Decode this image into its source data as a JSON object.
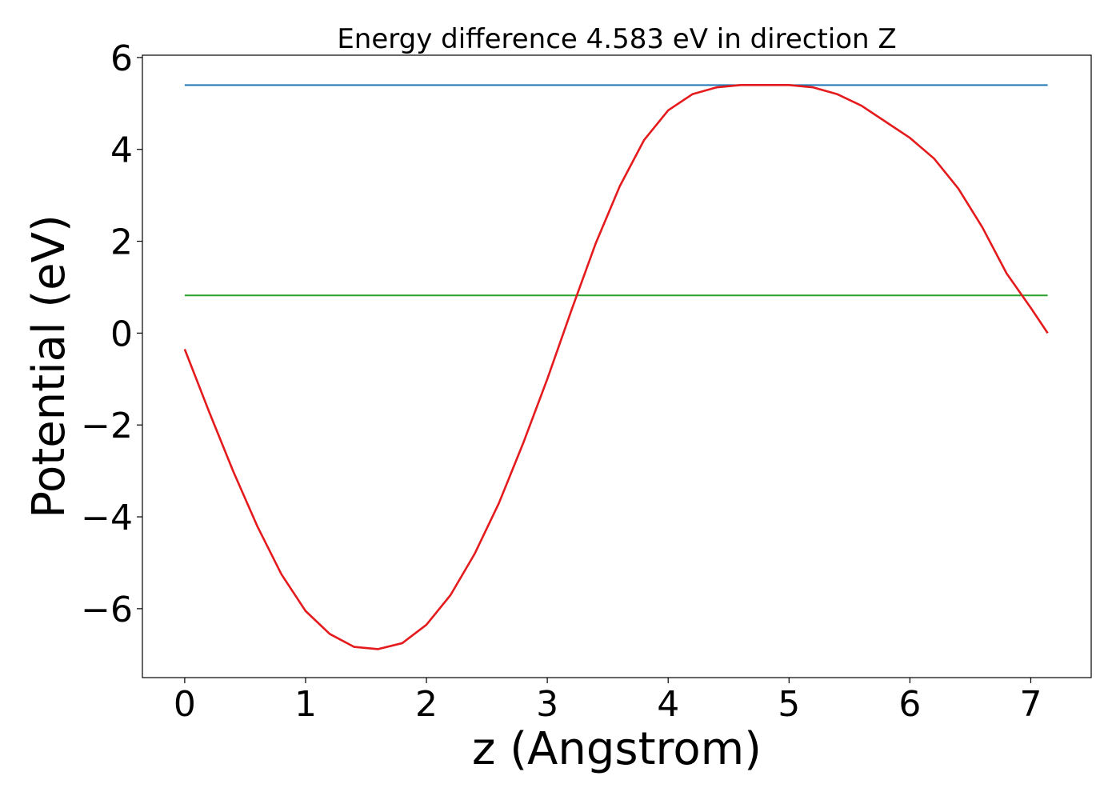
{
  "chart_data": {
    "type": "line",
    "title": "Energy difference 4.583 eV in direction Z",
    "xlabel": "z (Angstrom)",
    "ylabel": "Potential (eV)",
    "xlim": [
      -0.35,
      7.5
    ],
    "ylim": [
      -7.5,
      6.05
    ],
    "xticks": [
      0,
      1,
      2,
      3,
      4,
      5,
      6,
      7
    ],
    "yticks": [
      -6,
      -4,
      -2,
      0,
      2,
      4,
      6
    ],
    "xtick_labels": [
      "0",
      "1",
      "2",
      "3",
      "4",
      "5",
      "6",
      "7"
    ],
    "ytick_labels": [
      "−6",
      "−4",
      "−2",
      "0",
      "2",
      "4",
      "6"
    ],
    "grid": false,
    "series": [
      {
        "kind": "hline",
        "color": "#1f77b4",
        "x": [
          0,
          7.14
        ],
        "y": [
          5.4,
          5.4
        ]
      },
      {
        "kind": "hline",
        "color": "#2ca02c",
        "x": [
          0,
          7.14
        ],
        "y": [
          0.82,
          0.82
        ]
      },
      {
        "kind": "curve",
        "color": "#e41a1c",
        "x": [
          0,
          0.2,
          0.4,
          0.6,
          0.8,
          1.0,
          1.2,
          1.4,
          1.6,
          1.8,
          2.0,
          2.2,
          2.4,
          2.6,
          2.8,
          3.0,
          3.2,
          3.4,
          3.6,
          3.8,
          4.0,
          4.2,
          4.4,
          4.6,
          4.8,
          5.0,
          5.2,
          5.4,
          5.6,
          5.8,
          6.0,
          6.2,
          6.4,
          6.6,
          6.8,
          7.0,
          7.14
        ],
        "y": [
          -0.35,
          -1.7,
          -3.0,
          -4.2,
          -5.25,
          -6.05,
          -6.55,
          -6.83,
          -6.88,
          -6.75,
          -6.35,
          -5.7,
          -4.8,
          -3.7,
          -2.4,
          -1.0,
          0.5,
          1.95,
          3.2,
          4.2,
          4.85,
          5.2,
          5.35,
          5.4,
          5.4,
          5.4,
          5.35,
          5.2,
          4.95,
          4.6,
          4.25,
          3.8,
          3.15,
          2.3,
          1.3,
          0.55,
          0.0
        ]
      }
    ]
  }
}
